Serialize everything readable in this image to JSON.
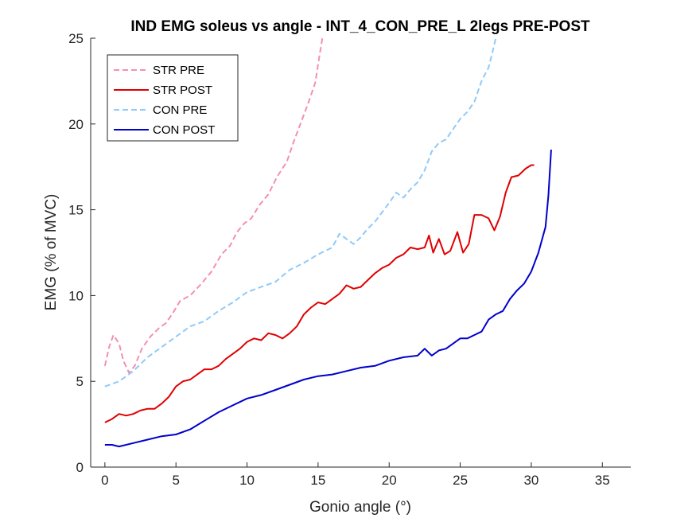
{
  "chart_data": {
    "type": "line",
    "title": "IND EMG soleus vs angle - INT_4_CON_PRE_L 2legs PRE-POST",
    "xlabel": "Gonio angle (°)",
    "ylabel": "EMG (% of MVC)",
    "xlim": [
      -1,
      37
    ],
    "ylim": [
      0,
      25
    ],
    "xticks": [
      0,
      5,
      10,
      15,
      20,
      25,
      30,
      35
    ],
    "yticks": [
      0,
      5,
      10,
      15,
      20,
      25
    ],
    "grid": false,
    "legend_position": "top-left",
    "series": [
      {
        "name": "STR PRE",
        "color": "#f48fb1",
        "dashed": true,
        "points": [
          [
            0,
            5.9
          ],
          [
            0.3,
            7.0
          ],
          [
            0.6,
            7.7
          ],
          [
            1.0,
            7.2
          ],
          [
            1.3,
            6.2
          ],
          [
            1.7,
            5.5
          ],
          [
            2.1,
            5.9
          ],
          [
            2.6,
            6.9
          ],
          [
            3.2,
            7.6
          ],
          [
            3.8,
            8.1
          ],
          [
            4.3,
            8.4
          ],
          [
            4.8,
            9.0
          ],
          [
            5.3,
            9.7
          ],
          [
            6.0,
            10.0
          ],
          [
            6.8,
            10.7
          ],
          [
            7.5,
            11.4
          ],
          [
            8.2,
            12.4
          ],
          [
            8.8,
            12.9
          ],
          [
            9.3,
            13.7
          ],
          [
            9.8,
            14.2
          ],
          [
            10.3,
            14.5
          ],
          [
            10.9,
            15.3
          ],
          [
            11.5,
            15.9
          ],
          [
            12.1,
            16.9
          ],
          [
            12.8,
            17.8
          ],
          [
            13.3,
            19.0
          ],
          [
            13.8,
            20.1
          ],
          [
            14.3,
            21.2
          ],
          [
            14.8,
            22.4
          ],
          [
            15.1,
            24.0
          ],
          [
            15.3,
            25.0
          ]
        ]
      },
      {
        "name": "STR POST",
        "color": "#e00000",
        "dashed": false,
        "points": [
          [
            0,
            2.6
          ],
          [
            0.5,
            2.8
          ],
          [
            1.0,
            3.1
          ],
          [
            1.5,
            3.0
          ],
          [
            2.0,
            3.1
          ],
          [
            2.5,
            3.3
          ],
          [
            3.0,
            3.4
          ],
          [
            3.5,
            3.4
          ],
          [
            4.0,
            3.7
          ],
          [
            4.5,
            4.1
          ],
          [
            5.0,
            4.7
          ],
          [
            5.5,
            5.0
          ],
          [
            6.0,
            5.1
          ],
          [
            6.5,
            5.4
          ],
          [
            7.0,
            5.7
          ],
          [
            7.5,
            5.7
          ],
          [
            8.0,
            5.9
          ],
          [
            8.5,
            6.3
          ],
          [
            9.0,
            6.6
          ],
          [
            9.5,
            6.9
          ],
          [
            10.0,
            7.3
          ],
          [
            10.5,
            7.5
          ],
          [
            11.0,
            7.4
          ],
          [
            11.5,
            7.8
          ],
          [
            12.0,
            7.7
          ],
          [
            12.5,
            7.5
          ],
          [
            13.0,
            7.8
          ],
          [
            13.5,
            8.2
          ],
          [
            14.0,
            8.9
          ],
          [
            14.5,
            9.3
          ],
          [
            15.0,
            9.6
          ],
          [
            15.5,
            9.5
          ],
          [
            16.0,
            9.8
          ],
          [
            16.5,
            10.1
          ],
          [
            17.0,
            10.6
          ],
          [
            17.5,
            10.4
          ],
          [
            18.0,
            10.5
          ],
          [
            18.5,
            10.9
          ],
          [
            19.0,
            11.3
          ],
          [
            19.5,
            11.6
          ],
          [
            20.0,
            11.8
          ],
          [
            20.5,
            12.2
          ],
          [
            21.0,
            12.4
          ],
          [
            21.5,
            12.8
          ],
          [
            22.0,
            12.7
          ],
          [
            22.5,
            12.8
          ],
          [
            22.8,
            13.5
          ],
          [
            23.1,
            12.5
          ],
          [
            23.5,
            13.3
          ],
          [
            23.9,
            12.4
          ],
          [
            24.3,
            12.6
          ],
          [
            24.8,
            13.7
          ],
          [
            25.2,
            12.5
          ],
          [
            25.6,
            13.0
          ],
          [
            26.0,
            14.7
          ],
          [
            26.5,
            14.7
          ],
          [
            27.0,
            14.5
          ],
          [
            27.4,
            13.8
          ],
          [
            27.8,
            14.6
          ],
          [
            28.2,
            16.0
          ],
          [
            28.6,
            16.9
          ],
          [
            29.1,
            17.0
          ],
          [
            29.6,
            17.4
          ],
          [
            30.0,
            17.6
          ],
          [
            30.2,
            17.6
          ]
        ]
      },
      {
        "name": "CON PRE",
        "color": "#90caf9",
        "dashed": true,
        "points": [
          [
            0,
            4.7
          ],
          [
            1.0,
            5.0
          ],
          [
            2.0,
            5.6
          ],
          [
            3.0,
            6.4
          ],
          [
            4.0,
            7.0
          ],
          [
            5.0,
            7.6
          ],
          [
            6.0,
            8.2
          ],
          [
            7.0,
            8.5
          ],
          [
            8.0,
            9.1
          ],
          [
            9.0,
            9.6
          ],
          [
            10.0,
            10.2
          ],
          [
            11.0,
            10.5
          ],
          [
            12.0,
            10.8
          ],
          [
            13.0,
            11.5
          ],
          [
            14.0,
            11.9
          ],
          [
            15.0,
            12.4
          ],
          [
            16.0,
            12.8
          ],
          [
            16.5,
            13.6
          ],
          [
            17.0,
            13.3
          ],
          [
            17.5,
            13.0
          ],
          [
            18.0,
            13.4
          ],
          [
            18.5,
            13.9
          ],
          [
            19.0,
            14.3
          ],
          [
            20.0,
            15.4
          ],
          [
            20.5,
            16.0
          ],
          [
            21.0,
            15.7
          ],
          [
            21.5,
            16.2
          ],
          [
            22.0,
            16.6
          ],
          [
            22.5,
            17.3
          ],
          [
            23.0,
            18.4
          ],
          [
            23.5,
            18.9
          ],
          [
            24.0,
            19.1
          ],
          [
            24.5,
            19.7
          ],
          [
            25.0,
            20.3
          ],
          [
            25.5,
            20.7
          ],
          [
            26.0,
            21.3
          ],
          [
            26.5,
            22.5
          ],
          [
            27.0,
            23.3
          ],
          [
            27.3,
            24.3
          ],
          [
            27.5,
            25.0
          ]
        ]
      },
      {
        "name": "CON POST",
        "color": "#0000cc",
        "dashed": false,
        "points": [
          [
            0,
            1.3
          ],
          [
            0.5,
            1.3
          ],
          [
            1.0,
            1.2
          ],
          [
            2.0,
            1.4
          ],
          [
            3.0,
            1.6
          ],
          [
            4.0,
            1.8
          ],
          [
            5.0,
            1.9
          ],
          [
            6.0,
            2.2
          ],
          [
            7.0,
            2.7
          ],
          [
            8.0,
            3.2
          ],
          [
            9.0,
            3.6
          ],
          [
            10.0,
            4.0
          ],
          [
            11.0,
            4.2
          ],
          [
            12.0,
            4.5
          ],
          [
            13.0,
            4.8
          ],
          [
            14.0,
            5.1
          ],
          [
            15.0,
            5.3
          ],
          [
            16.0,
            5.4
          ],
          [
            17.0,
            5.6
          ],
          [
            18.0,
            5.8
          ],
          [
            19.0,
            5.9
          ],
          [
            20.0,
            6.2
          ],
          [
            21.0,
            6.4
          ],
          [
            22.0,
            6.5
          ],
          [
            22.5,
            6.9
          ],
          [
            23.0,
            6.5
          ],
          [
            23.5,
            6.8
          ],
          [
            24.0,
            6.9
          ],
          [
            24.5,
            7.2
          ],
          [
            25.0,
            7.5
          ],
          [
            25.5,
            7.5
          ],
          [
            26.0,
            7.7
          ],
          [
            26.5,
            7.9
          ],
          [
            27.0,
            8.6
          ],
          [
            27.5,
            8.9
          ],
          [
            28.0,
            9.1
          ],
          [
            28.5,
            9.8
          ],
          [
            29.0,
            10.3
          ],
          [
            29.5,
            10.7
          ],
          [
            30.0,
            11.4
          ],
          [
            30.5,
            12.5
          ],
          [
            31.0,
            14.0
          ],
          [
            31.2,
            15.8
          ],
          [
            31.4,
            18.5
          ]
        ]
      }
    ]
  }
}
